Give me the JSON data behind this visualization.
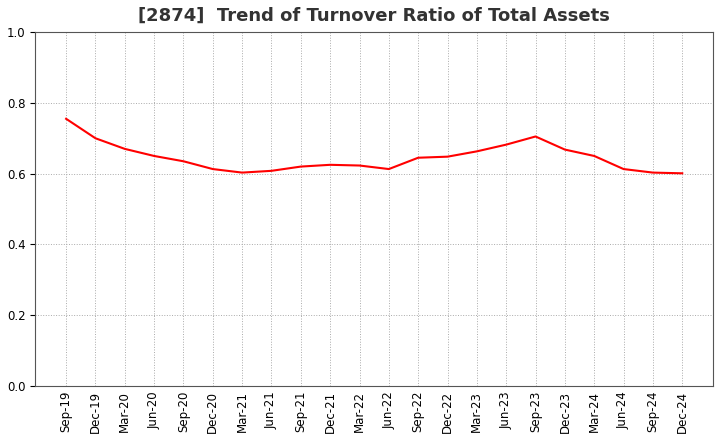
{
  "title": "[2874]  Trend of Turnover Ratio of Total Assets",
  "x_labels": [
    "Sep-19",
    "Dec-19",
    "Mar-20",
    "Jun-20",
    "Sep-20",
    "Dec-20",
    "Mar-21",
    "Jun-21",
    "Sep-21",
    "Dec-21",
    "Mar-22",
    "Jun-22",
    "Sep-22",
    "Dec-22",
    "Mar-23",
    "Jun-23",
    "Sep-23",
    "Dec-23",
    "Mar-24",
    "Jun-24",
    "Sep-24",
    "Dec-24"
  ],
  "values": [
    0.755,
    0.7,
    0.67,
    0.65,
    0.635,
    0.613,
    0.603,
    0.608,
    0.62,
    0.625,
    0.623,
    0.613,
    0.645,
    0.648,
    0.663,
    0.682,
    0.705,
    0.668,
    0.65,
    0.613,
    0.603,
    0.601
  ],
  "line_color": "#FF0000",
  "line_width": 1.5,
  "ylim": [
    0.0,
    1.0
  ],
  "yticks": [
    0.0,
    0.2,
    0.4,
    0.6,
    0.8,
    1.0
  ],
  "background_color": "#ffffff",
  "grid_color": "#aaaaaa",
  "title_fontsize": 13,
  "tick_fontsize": 8.5
}
